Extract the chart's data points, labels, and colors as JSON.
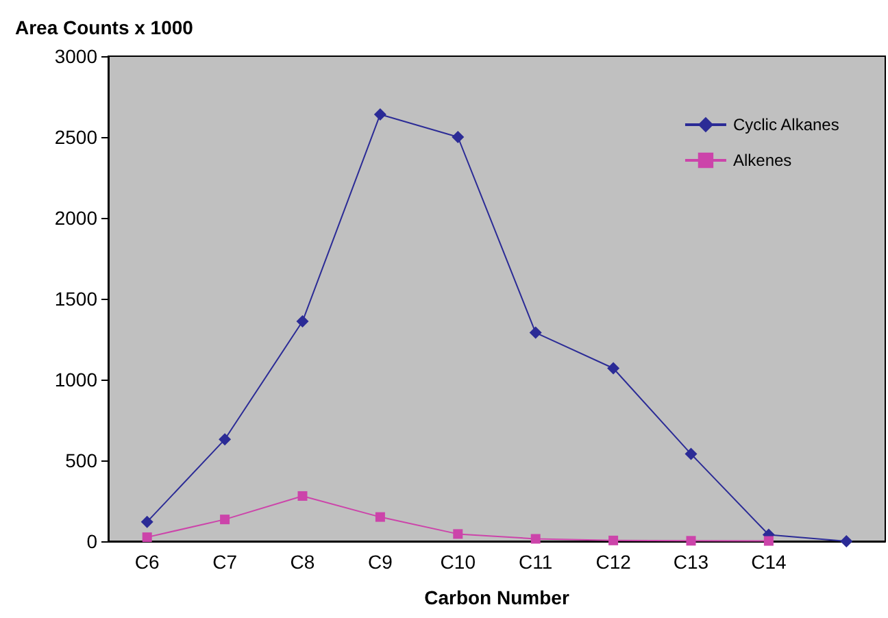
{
  "chart_data": {
    "type": "line",
    "ylabel": "Area Counts x 1000",
    "xlabel": "Carbon Number",
    "categories": [
      "C6",
      "C7",
      "C8",
      "C9",
      "C10",
      "C11",
      "C12",
      "C13",
      "C14",
      null
    ],
    "series": [
      {
        "name": "Cyclic Alkanes",
        "color": "#2b2b96",
        "marker": "diamond",
        "values": [
          120,
          630,
          1360,
          2640,
          2500,
          1290,
          1070,
          540,
          40,
          0
        ]
      },
      {
        "name": "Alkenes",
        "color": "#cc44aa",
        "marker": "square",
        "values": [
          25,
          135,
          280,
          150,
          45,
          15,
          5,
          3,
          2,
          null
        ]
      }
    ],
    "ylim": [
      0,
      3000
    ],
    "yticks": [
      0,
      500,
      1000,
      1500,
      2000,
      2500,
      3000
    ],
    "grid": false,
    "legend": "top right"
  }
}
